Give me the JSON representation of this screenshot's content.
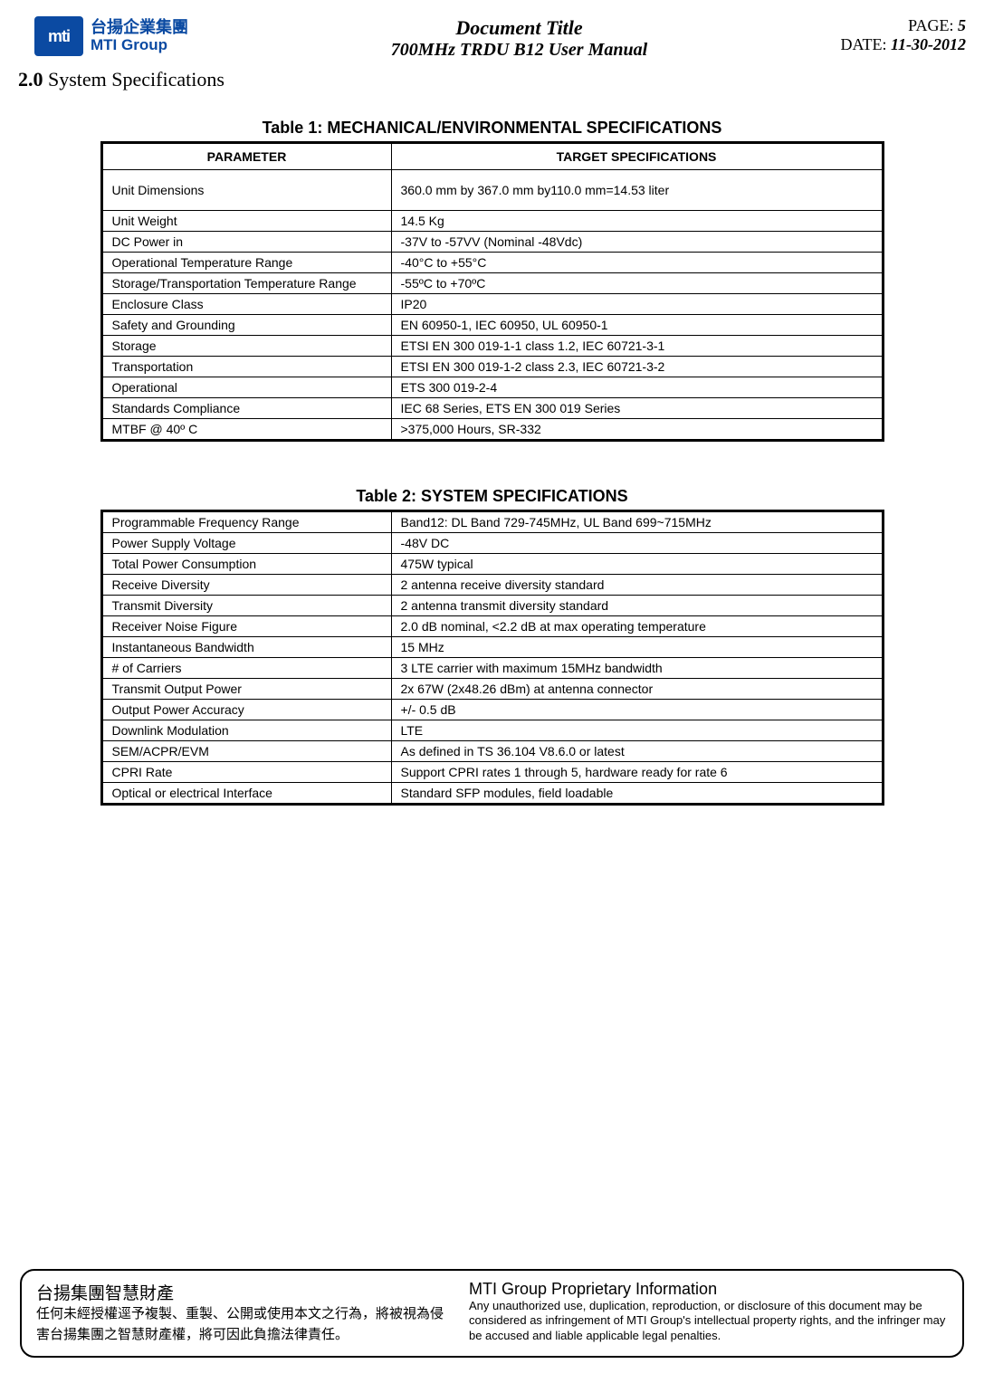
{
  "header": {
    "logo_abbrev": "mti",
    "logo_cn": "台揚企業集團",
    "logo_en": "MTI Group",
    "title": "Document Title",
    "subtitle": "700MHz TRDU B12 User Manual",
    "page_label": "PAGE: ",
    "page_value": "5",
    "date_label": "DATE: ",
    "date_value": "11-30-2012"
  },
  "section": {
    "number": "2.0",
    "title": " System Specifications"
  },
  "table1": {
    "title": "Table 1: MECHANICAL/ENVIRONMENTAL SPECIFICATIONS",
    "col_parameter": "PARAMETER",
    "col_target": "TARGET SPECIFICATIONS",
    "rows": [
      {
        "param": "Unit Dimensions",
        "value": "360.0 mm by 367.0 mm by110.0 mm=14.53  liter",
        "tall": true
      },
      {
        "param": "Unit Weight",
        "value": "14.5 Kg"
      },
      {
        "param": "DC Power in",
        "value": "-37V to -57VV  (Nominal -48Vdc)"
      },
      {
        "param": "Operational Temperature Range",
        "value": "-40°C to +55°C"
      },
      {
        "param": "Storage/Transportation Temperature Range",
        "value": "-55ºC to +70ºC"
      },
      {
        "param": "Enclosure Class",
        "value": "IP20"
      },
      {
        "param": "Safety and Grounding",
        "value": "EN 60950-1, IEC 60950, UL 60950-1"
      },
      {
        "param": "Storage",
        "value": "ETSI EN 300 019-1-1 class 1.2, IEC 60721-3-1"
      },
      {
        "param": "Transportation",
        "value": "ETSI EN 300 019-1-2 class 2.3, IEC 60721-3-2"
      },
      {
        "param": "Operational",
        "value": "ETS 300 019-2-4"
      },
      {
        "param": "Standards Compliance",
        "value": "IEC 68 Series, ETS EN 300 019 Series"
      },
      {
        "param": "MTBF @ 40º C",
        "value": ">375,000 Hours, SR-332"
      }
    ]
  },
  "table2": {
    "title": "Table 2: SYSTEM SPECIFICATIONS",
    "rows": [
      {
        "param": "Programmable Frequency Range",
        "value": "Band12:  DL Band 729-745MHz, UL Band 699~715MHz"
      },
      {
        "param": "Power Supply Voltage",
        "value": "-48V DC"
      },
      {
        "param": "Total Power Consumption",
        "value": "475W typical"
      },
      {
        "param": "Receive Diversity",
        "value": "2 antenna receive diversity standard"
      },
      {
        "param": "Transmit Diversity",
        "value": "2 antenna transmit diversity standard"
      },
      {
        "param": "Receiver Noise Figure",
        "value": "2.0 dB nominal, <2.2 dB at max operating temperature"
      },
      {
        "param": "Instantaneous Bandwidth",
        "value": "15 MHz"
      },
      {
        "param": "# of Carriers",
        "value": "3 LTE carrier with maximum 15MHz bandwidth"
      },
      {
        "param": "Transmit Output Power",
        "value": "2x 67W  (2x48.26 dBm) at antenna connector"
      },
      {
        "param": "Output Power Accuracy",
        "value": "+/- 0.5 dB"
      },
      {
        "param": "Downlink Modulation",
        "value": "LTE"
      },
      {
        "param": "SEM/ACPR/EVM",
        "value": "As defined in TS 36.104 V8.6.0 or latest"
      },
      {
        "param": "CPRI Rate",
        "value": "Support CPRI rates 1 through 5, hardware ready for rate 6"
      },
      {
        "param": "Optical or electrical Interface",
        "value": "Standard SFP modules, field loadable"
      }
    ]
  },
  "footer": {
    "cn_head": "台揚集團智慧財產",
    "cn_body": "任何未經授權逕予複製、重製、公開或使用本文之行為，將被視為侵害台揚集團之智慧財產權，將可因此負擔法律責任。",
    "en_head": "MTI Group Proprietary Information",
    "en_body": "Any unauthorized use, duplication, reproduction, or disclosure of this document may be considered as infringement of MTI Group's intellectual property rights, and the infringer may be accused and liable applicable legal penalties."
  }
}
